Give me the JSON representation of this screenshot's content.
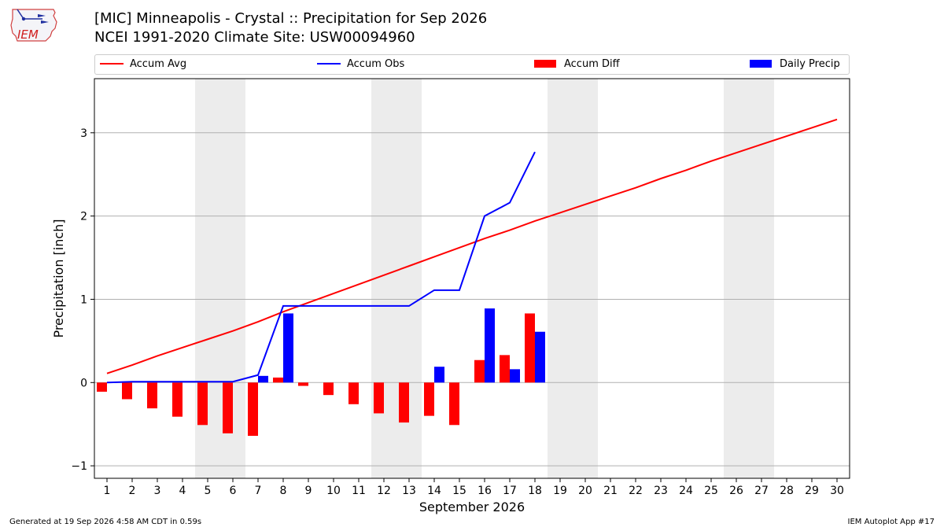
{
  "header": {
    "title_line1": "[MIC] Minneapolis - Crystal :: Precipitation for Sep 2026",
    "title_line2": "NCEI 1991-2020 Climate Site: USW00094960",
    "logo_text": "IEM"
  },
  "footer": {
    "left": "Generated at 19 Sep 2026 4:58 AM CDT in 0.59s",
    "right": "IEM Autoplot App #17"
  },
  "colors": {
    "avg": "#ff0000",
    "obs": "#0000ff",
    "diff": "#ff0000",
    "daily": "#0000ff",
    "weekend_shade": "#ececec",
    "grid": "#b0b0b0"
  },
  "chart_data": {
    "type": "bar",
    "xlabel": "September 2026",
    "ylabel": "Precipitation [inch]",
    "xlim": [
      0.5,
      30.5
    ],
    "ylim": [
      -1.15,
      3.65
    ],
    "yticks": [
      -1,
      0,
      1,
      2,
      3
    ],
    "ytick_labels": [
      "−1",
      "0",
      "1",
      "2",
      "3"
    ],
    "grid": "horizontal",
    "legend_placement": "top",
    "days": [
      1,
      2,
      3,
      4,
      5,
      6,
      7,
      8,
      9,
      10,
      11,
      12,
      13,
      14,
      15,
      16,
      17,
      18,
      19,
      20,
      21,
      22,
      23,
      24,
      25,
      26,
      27,
      28,
      29,
      30
    ],
    "weekend_pairs": [
      [
        5,
        6
      ],
      [
        12,
        13
      ],
      [
        19,
        20
      ],
      [
        26,
        27
      ]
    ],
    "series": [
      {
        "name": "Accum Avg",
        "kind": "line",
        "values": [
          0.11,
          0.21,
          0.32,
          0.42,
          0.52,
          0.62,
          0.73,
          0.85,
          0.96,
          1.07,
          1.18,
          1.29,
          1.4,
          1.51,
          1.62,
          1.73,
          1.83,
          1.94,
          2.04,
          2.14,
          2.24,
          2.34,
          2.45,
          2.55,
          2.66,
          2.76,
          2.86,
          2.96,
          3.06,
          3.16
        ]
      },
      {
        "name": "Accum Obs",
        "kind": "line",
        "values": [
          0.0,
          0.01,
          0.01,
          0.01,
          0.01,
          0.01,
          0.09,
          0.92,
          0.92,
          0.92,
          0.92,
          0.92,
          0.92,
          1.11,
          1.11,
          2.0,
          2.16,
          2.77
        ]
      },
      {
        "name": "Accum Diff",
        "kind": "bar",
        "values": [
          -0.11,
          -0.2,
          -0.31,
          -0.41,
          -0.51,
          -0.61,
          -0.64,
          0.06,
          -0.04,
          -0.15,
          -0.26,
          -0.37,
          -0.48,
          -0.4,
          -0.51,
          0.27,
          0.33,
          0.83
        ]
      },
      {
        "name": "Daily Precip",
        "kind": "bar",
        "values": [
          0.0,
          0.0,
          0.0,
          0.0,
          0.0,
          0.0,
          0.08,
          0.83,
          0.0,
          0.0,
          0.0,
          0.0,
          0.0,
          0.19,
          0.0,
          0.89,
          0.16,
          0.61
        ]
      }
    ]
  }
}
